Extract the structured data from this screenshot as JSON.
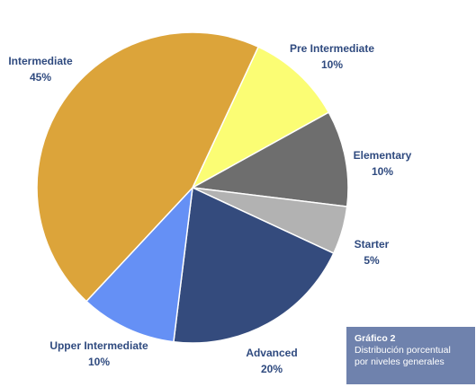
{
  "chart_data": {
    "type": "pie",
    "start_angle_deg": -65,
    "direction": "clockwise",
    "slices": [
      {
        "label": "Pre Intermediate",
        "value": 10,
        "value_label": "10%",
        "color": "#fbfd74"
      },
      {
        "label": "Elementary",
        "value": 10,
        "value_label": "10%",
        "color": "#6e6e6e"
      },
      {
        "label": "Starter",
        "value": 5,
        "value_label": "5%",
        "color": "#b2b2b2"
      },
      {
        "label": "Advanced",
        "value": 20,
        "value_label": "20%",
        "color": "#344b7d"
      },
      {
        "label": "Upper Intermediate",
        "value": 10,
        "value_label": "10%",
        "color": "#6590f5"
      },
      {
        "label": "Intermediate",
        "value": 45,
        "value_label": "45%",
        "color": "#dca43a"
      }
    ]
  },
  "caption": {
    "title": "Gráfico 2",
    "line1": "Distribución porcentual",
    "line2": "por niveles generales"
  }
}
